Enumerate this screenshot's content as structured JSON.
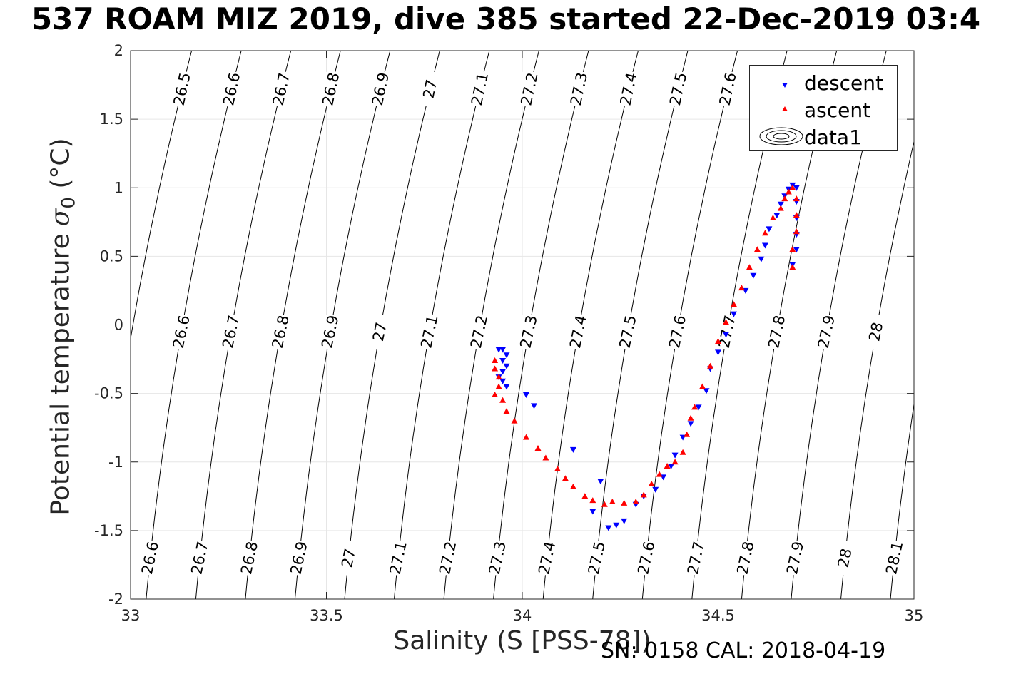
{
  "title": "537 ROAM MIZ 2019, dive 385 started 22-Dec-2019 03:4",
  "footer": "SN: 0158  CAL: 2018-04-19",
  "chart_data": {
    "type": "scatter",
    "title": "537 ROAM MIZ 2019, dive 385 started 22-Dec-2019 03:4",
    "xlabel": "Salinity (S [PSS-78])",
    "ylabel": "Potential temperature",
    "ylabel_symbol": "σ",
    "ylabel_subscript": "0",
    "ylabel_unit": "(°C)",
    "xlim": [
      33,
      35
    ],
    "ylim": [
      -2,
      2
    ],
    "xticks": [
      33,
      33.5,
      34,
      34.5,
      35
    ],
    "xtick_labels": [
      "33",
      "33.5",
      "34",
      "34.5",
      "35"
    ],
    "yticks": [
      -2,
      -1.5,
      -1,
      -0.5,
      0,
      0.5,
      1,
      1.5,
      2
    ],
    "ytick_labels": [
      "-2",
      "-1.5",
      "-1",
      "-0.5",
      "0",
      "0.5",
      "1",
      "1.5",
      "2"
    ],
    "grid": true,
    "legend": {
      "placement": "top-right",
      "entries": [
        {
          "label": "descent",
          "marker": "triangle-down",
          "color": "#0000ff"
        },
        {
          "label": "ascent",
          "marker": "triangle-up",
          "color": "#ff0000"
        },
        {
          "label": "data1",
          "marker": "contour",
          "color": "#000000"
        }
      ]
    },
    "contours": {
      "levels": [
        26.5,
        26.6,
        26.7,
        26.8,
        26.9,
        27,
        27.1,
        27.2,
        27.3,
        27.4,
        27.5,
        27.6,
        27.7,
        27.8,
        27.9,
        28,
        28.1
      ],
      "level_labels": [
        "26.5",
        "26.6",
        "26.7",
        "26.8",
        "26.9",
        "27",
        "27.1",
        "27.2",
        "27.3",
        "27.4",
        "27.5",
        "27.6",
        "27.7",
        "27.8",
        "27.9",
        "28",
        "28.1"
      ],
      "color": "#000000"
    },
    "series": [
      {
        "name": "descent",
        "color": "#0000ff",
        "marker": "triangle-down",
        "points": [
          [
            33.94,
            -0.18
          ],
          [
            33.95,
            -0.18
          ],
          [
            33.96,
            -0.22
          ],
          [
            33.95,
            -0.26
          ],
          [
            33.96,
            -0.3
          ],
          [
            33.95,
            -0.34
          ],
          [
            33.94,
            -0.38
          ],
          [
            33.95,
            -0.41
          ],
          [
            33.96,
            -0.45
          ],
          [
            34.01,
            -0.51
          ],
          [
            34.03,
            -0.59
          ],
          [
            34.13,
            -0.91
          ],
          [
            34.2,
            -1.14
          ],
          [
            34.18,
            -1.36
          ],
          [
            34.22,
            -1.48
          ],
          [
            34.24,
            -1.46
          ],
          [
            34.26,
            -1.43
          ],
          [
            34.29,
            -1.31
          ],
          [
            34.31,
            -1.25
          ],
          [
            34.34,
            -1.2
          ],
          [
            34.36,
            -1.11
          ],
          [
            34.38,
            -1.03
          ],
          [
            34.39,
            -0.95
          ],
          [
            34.41,
            -0.82
          ],
          [
            34.43,
            -0.72
          ],
          [
            34.45,
            -0.6
          ],
          [
            34.47,
            -0.48
          ],
          [
            34.48,
            -0.32
          ],
          [
            34.5,
            -0.2
          ],
          [
            34.52,
            -0.07
          ],
          [
            34.54,
            0.08
          ],
          [
            34.57,
            0.25
          ],
          [
            34.59,
            0.36
          ],
          [
            34.61,
            0.48
          ],
          [
            34.62,
            0.58
          ],
          [
            34.63,
            0.7
          ],
          [
            34.65,
            0.8
          ],
          [
            34.66,
            0.88
          ],
          [
            34.67,
            0.94
          ],
          [
            34.68,
            0.99
          ],
          [
            34.69,
            1.02
          ],
          [
            34.7,
            1.0
          ],
          [
            34.7,
            0.9
          ],
          [
            34.7,
            0.78
          ],
          [
            34.7,
            0.66
          ],
          [
            34.7,
            0.55
          ],
          [
            34.69,
            0.44
          ]
        ]
      },
      {
        "name": "ascent",
        "color": "#ff0000",
        "marker": "triangle-up",
        "points": [
          [
            33.93,
            -0.26
          ],
          [
            33.93,
            -0.32
          ],
          [
            33.94,
            -0.38
          ],
          [
            33.94,
            -0.45
          ],
          [
            33.93,
            -0.51
          ],
          [
            33.95,
            -0.55
          ],
          [
            33.96,
            -0.63
          ],
          [
            33.98,
            -0.7
          ],
          [
            34.01,
            -0.82
          ],
          [
            34.04,
            -0.9
          ],
          [
            34.06,
            -0.97
          ],
          [
            34.09,
            -1.05
          ],
          [
            34.11,
            -1.12
          ],
          [
            34.13,
            -1.18
          ],
          [
            34.16,
            -1.25
          ],
          [
            34.18,
            -1.28
          ],
          [
            34.21,
            -1.31
          ],
          [
            34.23,
            -1.29
          ],
          [
            34.26,
            -1.3
          ],
          [
            34.29,
            -1.29
          ],
          [
            34.31,
            -1.24
          ],
          [
            34.33,
            -1.16
          ],
          [
            34.35,
            -1.09
          ],
          [
            34.37,
            -1.03
          ],
          [
            34.39,
            -1.0
          ],
          [
            34.41,
            -0.93
          ],
          [
            34.42,
            -0.8
          ],
          [
            34.43,
            -0.68
          ],
          [
            34.44,
            -0.6
          ],
          [
            34.46,
            -0.45
          ],
          [
            34.48,
            -0.3
          ],
          [
            34.5,
            -0.12
          ],
          [
            34.52,
            0.02
          ],
          [
            34.54,
            0.15
          ],
          [
            34.56,
            0.27
          ],
          [
            34.58,
            0.42
          ],
          [
            34.6,
            0.55
          ],
          [
            34.62,
            0.67
          ],
          [
            34.64,
            0.78
          ],
          [
            34.66,
            0.85
          ],
          [
            34.67,
            0.92
          ],
          [
            34.68,
            0.97
          ],
          [
            34.69,
            1.0
          ],
          [
            34.7,
            0.92
          ],
          [
            34.7,
            0.8
          ],
          [
            34.7,
            0.68
          ],
          [
            34.69,
            0.55
          ],
          [
            34.69,
            0.42
          ]
        ]
      }
    ]
  }
}
